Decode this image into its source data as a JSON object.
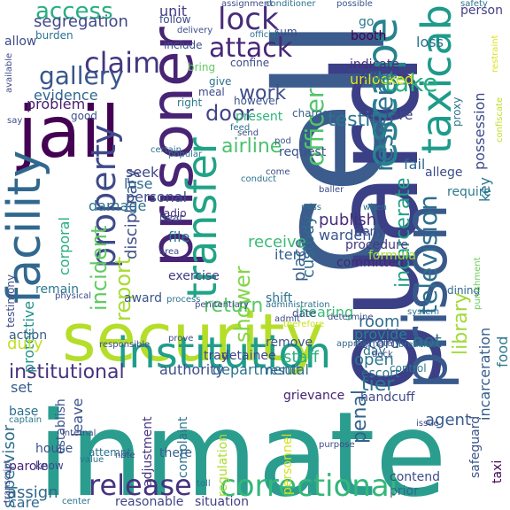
{
  "words": [
    {
      "text": "inmate",
      "color": "#2a9d8f"
    },
    {
      "text": "cell",
      "color": "#3b5c8c"
    },
    {
      "text": "guard",
      "color": "#3a3f86"
    },
    {
      "text": "security",
      "color": "#b5de2b"
    },
    {
      "text": "prisoner",
      "color": "#482475"
    },
    {
      "text": "jail",
      "color": "#440154"
    },
    {
      "text": "prison",
      "color": "#38598c"
    },
    {
      "text": "institution",
      "color": "#1f9e89"
    },
    {
      "text": "facility",
      "color": "#31688e"
    },
    {
      "text": "transfer",
      "color": "#20a386"
    },
    {
      "text": "escape",
      "color": "#26828e"
    },
    {
      "text": "taxicab",
      "color": "#1e9b8a"
    },
    {
      "text": "correctional",
      "color": "#35b779"
    },
    {
      "text": "property",
      "color": "#3e4a89"
    },
    {
      "text": "television",
      "color": "#2e6e8e"
    },
    {
      "text": "release",
      "color": "#46327e"
    },
    {
      "text": "claim",
      "color": "#453781"
    },
    {
      "text": "lock",
      "color": "#472c7a"
    },
    {
      "text": "attack",
      "color": "#482878"
    },
    {
      "text": "gallery",
      "color": "#39568c"
    },
    {
      "text": "resident",
      "color": "#2c718e"
    },
    {
      "text": "incident",
      "color": "#60ca60"
    },
    {
      "text": "officer",
      "color": "#50c46a"
    },
    {
      "text": "take",
      "color": "#27ad81"
    },
    {
      "text": "shower",
      "color": "#84d44b"
    },
    {
      "text": "report",
      "color": "#a8db34"
    },
    {
      "text": "access",
      "color": "#29af7f"
    },
    {
      "text": "library",
      "color": "#a0da39"
    },
    {
      "text": "door",
      "color": "#414487"
    },
    {
      "text": "work",
      "color": "#3e4c8a"
    },
    {
      "text": "penal",
      "color": "#33638d"
    },
    {
      "text": "tier",
      "color": "#2a768e"
    },
    {
      "text": "not",
      "color": "#2d708e"
    },
    {
      "text": "institutional",
      "color": "#46337f"
    },
    {
      "text": "disciplinary",
      "color": "#3d4e8a"
    },
    {
      "text": "custody",
      "color": "#2f6c8e"
    },
    {
      "text": "place",
      "color": "#365d8d"
    },
    {
      "text": "airline",
      "color": "#4ac16d"
    },
    {
      "text": "incarcerate",
      "color": "#1fa187"
    },
    {
      "text": "return",
      "color": "#58c765"
    },
    {
      "text": "testify",
      "color": "#2c738e"
    },
    {
      "text": "supervisor",
      "color": "#2e6f8e"
    },
    {
      "text": "segregation",
      "color": "#3f4889"
    },
    {
      "text": "publish",
      "color": "#472d7b"
    },
    {
      "text": "warden",
      "color": "#39558c"
    },
    {
      "text": "receive",
      "color": "#3bbb75"
    },
    {
      "text": "evidence",
      "color": "#31688e"
    },
    {
      "text": "protective",
      "color": "#21918c"
    },
    {
      "text": "unit",
      "color": "#443a83"
    },
    {
      "text": "fare",
      "color": "#3f4788"
    },
    {
      "text": "key",
      "color": "#2a788e"
    },
    {
      "text": "room",
      "color": "#2e6e8e"
    },
    {
      "text": "staff",
      "color": "#2db27d"
    },
    {
      "text": "open",
      "color": "#2a788e"
    },
    {
      "text": "duty",
      "color": "#c2df23"
    },
    {
      "text": "personal",
      "color": "#3b528b"
    },
    {
      "text": "provide",
      "color": "#26828e"
    },
    {
      "text": "incarceration",
      "color": "#365c8d"
    },
    {
      "text": "hearing",
      "color": "#3bbb75"
    },
    {
      "text": "record",
      "color": "#3e4a89"
    },
    {
      "text": "authority",
      "color": "#3e4c8a"
    },
    {
      "text": "departmental",
      "color": "#2c728e"
    },
    {
      "text": "agent",
      "color": "#375a8c"
    },
    {
      "text": "assign",
      "color": "#31688e"
    },
    {
      "text": "corporal",
      "color": "#26ad81"
    },
    {
      "text": "food",
      "color": "#2a788e"
    },
    {
      "text": "set",
      "color": "#375b8d"
    },
    {
      "text": "lose",
      "color": "#2f6b8e"
    },
    {
      "text": "seek",
      "color": "#3f4889"
    },
    {
      "text": "damage",
      "color": "#2c728e"
    },
    {
      "text": "fail",
      "color": "#31688e"
    },
    {
      "text": "problem",
      "color": "#481d6f"
    },
    {
      "text": "care",
      "color": "#31688e"
    },
    {
      "text": "leave",
      "color": "#3a538b"
    },
    {
      "text": "handcuff",
      "color": "#3e4989"
    },
    {
      "text": "grievance",
      "color": "#482173"
    },
    {
      "text": "exercise",
      "color": "#433d84"
    },
    {
      "text": "file",
      "color": "#2a788e"
    },
    {
      "text": "shift",
      "color": "#2c718e"
    },
    {
      "text": "item",
      "color": "#355f8d"
    },
    {
      "text": "committed",
      "color": "#482576"
    },
    {
      "text": "formula",
      "color": "#a5db36"
    },
    {
      "text": "procedure",
      "color": "#443983"
    },
    {
      "text": "deny",
      "color": "#3e4c8a"
    },
    {
      "text": "parole",
      "color": "#482878"
    },
    {
      "text": "establish",
      "color": "#3b528b"
    },
    {
      "text": "adjustment",
      "color": "#453781"
    },
    {
      "text": "complaint",
      "color": "#2c738e"
    },
    {
      "text": "regulation",
      "color": "#addc30"
    },
    {
      "text": "personnel",
      "color": "#d2e21b"
    },
    {
      "text": "reasonable",
      "color": "#404688"
    },
    {
      "text": "situation",
      "color": "#433e85"
    },
    {
      "text": "safeguard",
      "color": "#3b528b"
    },
    {
      "text": "taxi",
      "color": "#440154"
    },
    {
      "text": "prior",
      "color": "#2f6b8e"
    },
    {
      "text": "contend",
      "color": "#3e4c8a"
    },
    {
      "text": "escort",
      "color": "#2d708e"
    },
    {
      "text": "detainee",
      "color": "#3f4889"
    },
    {
      "text": "remove",
      "color": "#3b528b"
    },
    {
      "text": "tray",
      "color": "#3f4889"
    },
    {
      "text": "result",
      "color": "#31688e"
    },
    {
      "text": "day",
      "color": "#2c728e"
    },
    {
      "text": "award",
      "color": "#3a548c"
    },
    {
      "text": "remain",
      "color": "#2a788e"
    },
    {
      "text": "action",
      "color": "#355e8d"
    },
    {
      "text": "house",
      "color": "#3b528b"
    },
    {
      "text": "know",
      "color": "#3e4a89"
    },
    {
      "text": "there",
      "color": "#355f8d"
    },
    {
      "text": "base",
      "color": "#2d708e"
    },
    {
      "text": "require",
      "color": "#2a788e"
    },
    {
      "text": "allege",
      "color": "#3e4c8a"
    },
    {
      "text": "radio",
      "color": "#472c7a"
    },
    {
      "text": "person",
      "color": "#433e85"
    },
    {
      "text": "dining",
      "color": "#31688e"
    },
    {
      "text": "request",
      "color": "#3b528b"
    },
    {
      "text": "present",
      "color": "#2eb37c"
    },
    {
      "text": "however",
      "color": "#3b528b"
    },
    {
      "text": "charge",
      "color": "#355e8d"
    },
    {
      "text": "meal",
      "color": "#3e4989"
    },
    {
      "text": "give",
      "color": "#2c728e"
    },
    {
      "text": "bring",
      "color": "#5ec962"
    },
    {
      "text": "confine",
      "color": "#3e4a89"
    },
    {
      "text": "indicate",
      "color": "#472d7b"
    },
    {
      "text": "unlocked",
      "color": "#e0e318"
    },
    {
      "text": "booth",
      "color": "#440154"
    },
    {
      "text": "loss",
      "color": "#2c728e"
    },
    {
      "text": "include",
      "color": "#3b528b"
    },
    {
      "text": "right",
      "color": "#2a788e"
    },
    {
      "text": "allow",
      "color": "#3e4c8a"
    },
    {
      "text": "good",
      "color": "#3b528b"
    },
    {
      "text": "sum",
      "color": "#3f4889"
    },
    {
      "text": "proxy",
      "color": "#2c728e"
    },
    {
      "text": "possession",
      "color": "#3e4a89"
    },
    {
      "text": "office",
      "color": "#31688e"
    },
    {
      "text": "go",
      "color": "#2a788e"
    },
    {
      "text": "follow",
      "color": "#3e4c8a"
    },
    {
      "text": "burden",
      "color": "#2c718e"
    },
    {
      "text": "hear",
      "color": "#3b528b"
    },
    {
      "text": "control",
      "color": "#2a788e"
    },
    {
      "text": "attempt",
      "color": "#2c728e"
    },
    {
      "text": "testimony",
      "color": "#3e4c8a"
    },
    {
      "text": "captain",
      "color": "#2a788e"
    },
    {
      "text": "transcript",
      "color": "#3e4a89"
    },
    {
      "text": "safety",
      "color": "#2c728e"
    },
    {
      "text": "punishment",
      "color": "#6ccd5a"
    },
    {
      "text": "confiscate",
      "color": "#bddf26"
    },
    {
      "text": "restraint",
      "color": "#dde318"
    },
    {
      "text": "penitentiary",
      "color": "#3e4c8a"
    },
    {
      "text": "administration",
      "color": "#2c728e"
    },
    {
      "text": "date",
      "color": "#3b528b"
    },
    {
      "text": "admit",
      "color": "#3e4989"
    },
    {
      "text": "prove",
      "color": "#3e4c8a"
    },
    {
      "text": "approximately",
      "color": "#31688e"
    },
    {
      "text": "breakfast",
      "color": "#2c728e"
    },
    {
      "text": "deck",
      "color": "#3b528b"
    },
    {
      "text": "purpose",
      "color": "#3e4c8a"
    },
    {
      "text": "system",
      "color": "#2c728e"
    },
    {
      "text": "therefore",
      "color": "#cae11f"
    },
    {
      "text": "determine",
      "color": "#3e4c8a"
    },
    {
      "text": "responsible",
      "color": "#3e4a89"
    },
    {
      "text": "assignment",
      "color": "#3e4c8a"
    },
    {
      "text": "conditioner",
      "color": "#2c728e"
    },
    {
      "text": "possible",
      "color": "#3b528b"
    },
    {
      "text": "popular",
      "color": "#2c728e"
    },
    {
      "text": "available",
      "color": "#3e4c8a"
    },
    {
      "text": "certain",
      "color": "#2c728e"
    },
    {
      "text": "send",
      "color": "#3e4a89"
    },
    {
      "text": "feed",
      "color": "#2c728e"
    },
    {
      "text": "pod",
      "color": "#3b528b"
    },
    {
      "text": "come",
      "color": "#3e4c8a"
    },
    {
      "text": "conduct",
      "color": "#2c728e"
    },
    {
      "text": "note",
      "color": "#3e4c8a"
    },
    {
      "text": "value",
      "color": "#2c728e"
    },
    {
      "text": "issue",
      "color": "#3e4c8a"
    },
    {
      "text": "center",
      "color": "#2c728e"
    },
    {
      "text": "toll",
      "color": "#2c728e"
    },
    {
      "text": "physical",
      "color": "#3e4c8a"
    },
    {
      "text": "process",
      "color": "#2c728e"
    },
    {
      "text": "internal",
      "color": "#3e4c8a"
    },
    {
      "text": "delivery",
      "color": "#3e4c8a"
    },
    {
      "text": "official",
      "color": "#2c728e"
    },
    {
      "text": "baller",
      "color": "#3e4c8a"
    },
    {
      "text": "miss",
      "color": "#2c728e"
    },
    {
      "text": "area",
      "color": "#3e4c8a"
    },
    {
      "text": "when",
      "color": "#2c728e"
    },
    {
      "text": "say",
      "color": "#3e4c8a"
    }
  ]
}
